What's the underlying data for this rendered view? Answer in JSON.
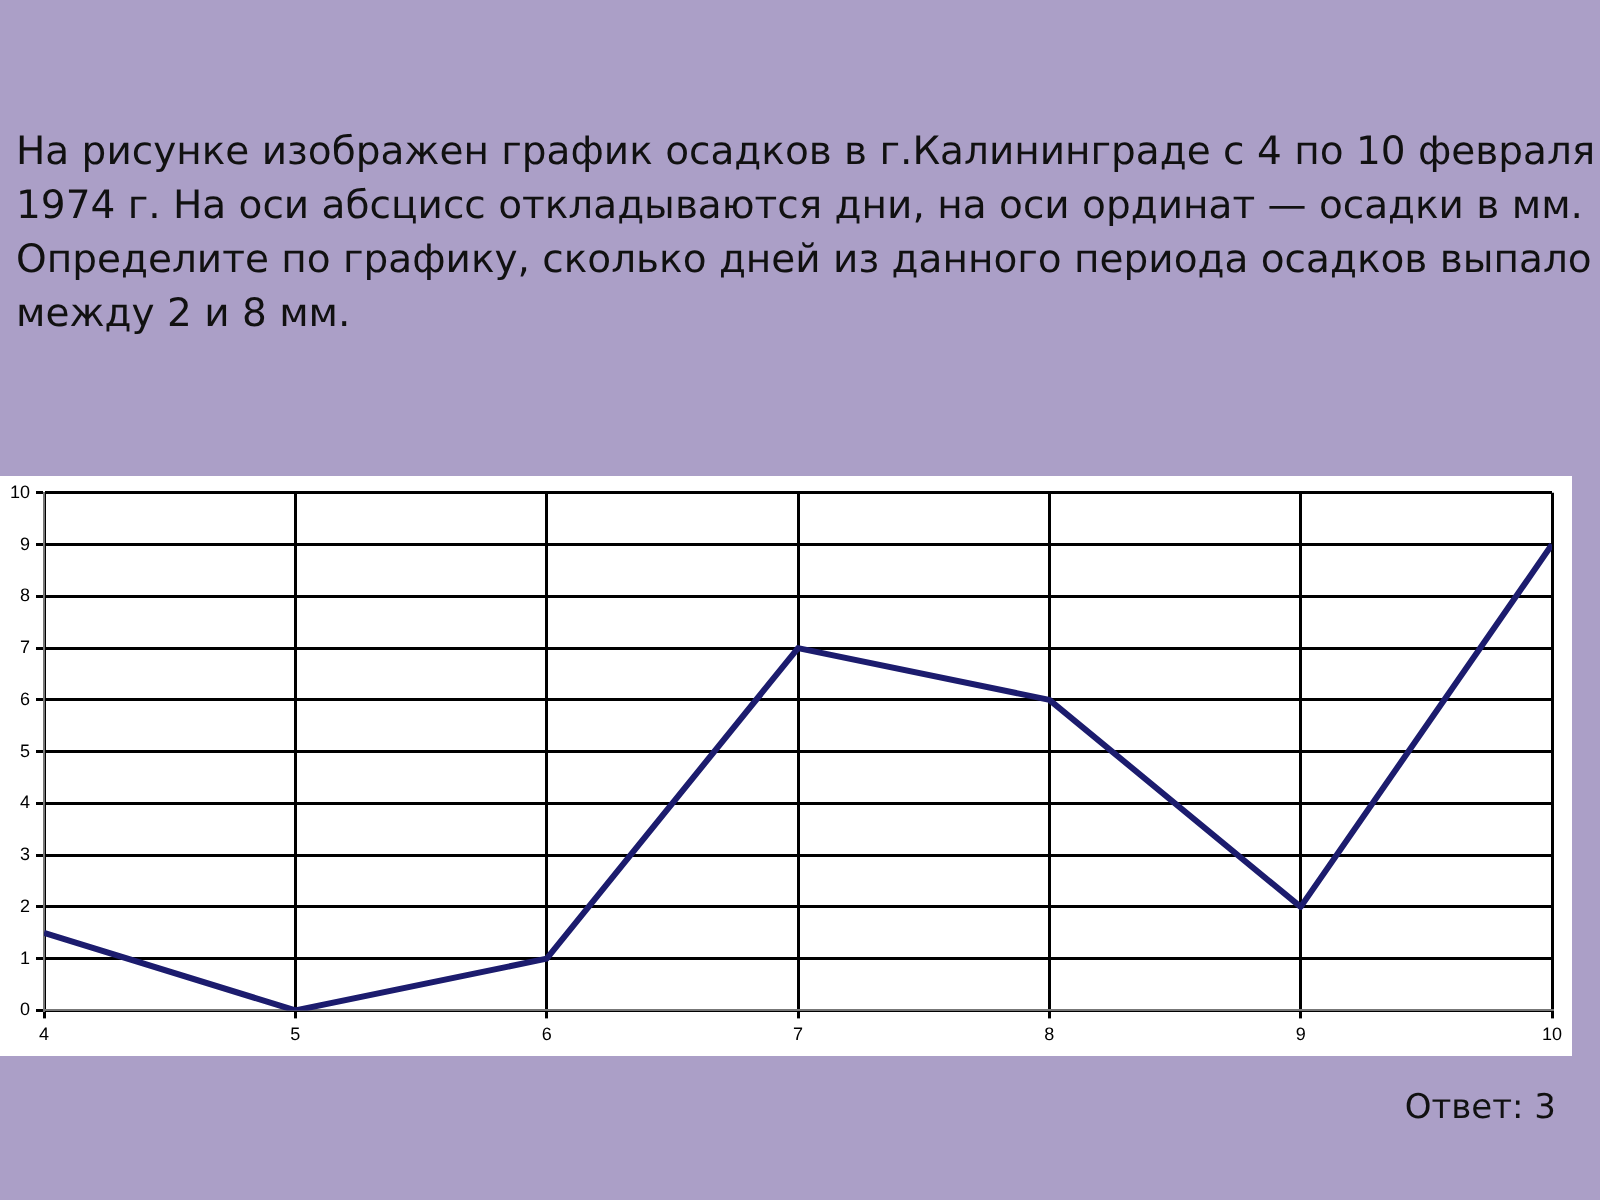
{
  "chart_data": {
    "type": "line",
    "title": "На рисунке изображен график осадков в г.Калининграде с 4 по 10 февраля 1974 г. На оси абсцисс откладываются дни, на оси ординат — осадки в мм. Определите по графику, сколько дней из данного периода осадков выпало между 2 и 8 мм.",
    "x": [
      4,
      5,
      6,
      7,
      8,
      9,
      10
    ],
    "series": [
      {
        "color": "#1c1c6e",
        "values": [
          1.5,
          0,
          1,
          7,
          6,
          2,
          9
        ]
      }
    ],
    "xlim": [
      4,
      10
    ],
    "xticks": [
      4,
      5,
      6,
      7,
      8,
      9,
      10
    ],
    "ylim": [
      0,
      10
    ],
    "yticks": [
      0,
      1,
      2,
      3,
      4,
      5,
      6,
      7,
      8,
      9,
      10
    ],
    "grid": true,
    "legend": false,
    "marker": "none",
    "line_style": "solid",
    "annotations": [
      "Ответ: 3"
    ]
  }
}
